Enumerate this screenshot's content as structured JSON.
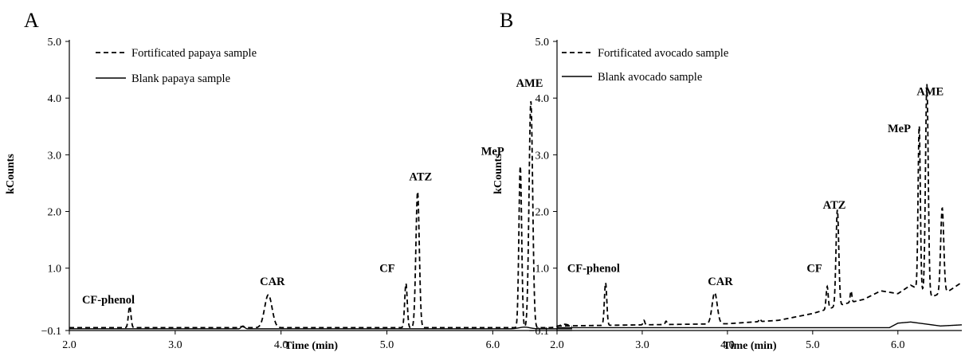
{
  "chart_data": [
    {
      "type": "line",
      "panel_label": "A",
      "xlabel": "Time (min)",
      "ylabel": "kCounts",
      "xlim": [
        2.0,
        6.75
      ],
      "ylim": [
        -0.1,
        5.0
      ],
      "x_ticks": [
        "2.0",
        "3.0",
        "4.0",
        "5.0",
        "6.0"
      ],
      "y_ticks": [
        "5.0",
        "4.0",
        "3.0",
        "2.0",
        "1.0",
        "−0.1"
      ],
      "legend_position": "top-left",
      "series": [
        {
          "name": "Fortificated papaya sample",
          "style": "dashed",
          "baseline": -0.05,
          "peaks": [
            {
              "t": 2.57,
              "h": 0.38,
              "w": 0.012
            },
            {
              "t": 3.63,
              "h": 0.02,
              "w": 0.02
            },
            {
              "t": 3.88,
              "h": 0.58,
              "w": 0.035
            },
            {
              "t": 5.18,
              "h": 0.78,
              "w": 0.012
            },
            {
              "t": 5.29,
              "h": 2.4,
              "w": 0.016
            },
            {
              "t": 6.26,
              "h": 2.85,
              "w": 0.013
            },
            {
              "t": 6.36,
              "h": 4.0,
              "w": 0.017
            },
            {
              "t": 6.68,
              "h": 0.06,
              "w": 0.05
            }
          ]
        },
        {
          "name": "Blank papaya sample",
          "style": "solid",
          "baseline": -0.07,
          "peaks": [
            {
              "t": 3.64,
              "h": 0.05,
              "w": 0.015
            },
            {
              "t": 6.3,
              "h": 0.03,
              "w": 0.05
            }
          ]
        }
      ],
      "annotations": [
        {
          "text": "CF-phenol",
          "x": 2.12,
          "y": 0.38
        },
        {
          "text": "CAR",
          "x": 3.8,
          "y": 0.7
        },
        {
          "text": "CF",
          "x": 4.93,
          "y": 0.93
        },
        {
          "text": "ATZ",
          "x": 5.21,
          "y": 2.55
        },
        {
          "text": "MeP",
          "x": 5.89,
          "y": 3.0
        },
        {
          "text": "AME",
          "x": 6.22,
          "y": 4.2
        }
      ]
    },
    {
      "type": "line",
      "panel_label": "B",
      "xlabel": "Time (min)",
      "ylabel": "kCounts",
      "xlim": [
        2.0,
        6.75
      ],
      "ylim": [
        -0.1,
        5.0
      ],
      "x_ticks": [
        "2.0",
        "3.0",
        "4.0",
        "5.0",
        "6.0"
      ],
      "y_ticks": [
        "5.0",
        "4.0",
        "3.0",
        "2.0",
        "1.0",
        "−0.1"
      ],
      "legend_position": "top-left",
      "series": [
        {
          "name": "Fortificated avocado sample",
          "style": "dashed",
          "baseline": -0.02,
          "hump": [
            [
              2.0,
              -0.02
            ],
            [
              3.0,
              0.0
            ],
            [
              4.0,
              0.02
            ],
            [
              4.6,
              0.08
            ],
            [
              5.0,
              0.2
            ],
            [
              5.4,
              0.38
            ],
            [
              5.6,
              0.45
            ],
            [
              5.8,
              0.6
            ],
            [
              6.0,
              0.55
            ],
            [
              6.15,
              0.7
            ],
            [
              6.4,
              0.5
            ],
            [
              6.6,
              0.6
            ],
            [
              6.75,
              0.75
            ]
          ],
          "peaks": [
            {
              "t": 2.57,
              "h": 0.75,
              "w": 0.014
            },
            {
              "t": 3.02,
              "h": 0.08,
              "w": 0.01
            },
            {
              "t": 3.28,
              "h": 0.06,
              "w": 0.01
            },
            {
              "t": 3.85,
              "h": 0.55,
              "w": 0.03
            },
            {
              "t": 4.38,
              "h": 0.05,
              "w": 0.01
            },
            {
              "t": 5.17,
              "h": 0.4,
              "w": 0.012
            },
            {
              "t": 5.29,
              "h": 1.7,
              "w": 0.016
            },
            {
              "t": 5.45,
              "h": 0.2,
              "w": 0.01
            },
            {
              "t": 6.25,
              "h": 2.9,
              "w": 0.013
            },
            {
              "t": 6.34,
              "h": 3.7,
              "w": 0.016
            },
            {
              "t": 6.52,
              "h": 1.5,
              "w": 0.018
            }
          ]
        },
        {
          "name": "Blank avocado sample",
          "style": "solid",
          "baseline": -0.05,
          "hump": [
            [
              2.0,
              -0.05
            ],
            [
              5.9,
              -0.05
            ],
            [
              6.0,
              0.03
            ],
            [
              6.15,
              0.05
            ],
            [
              6.3,
              0.02
            ],
            [
              6.5,
              -0.02
            ],
            [
              6.75,
              0.0
            ]
          ],
          "peaks": []
        }
      ],
      "annotations": [
        {
          "text": "CF-phenol",
          "x": 2.12,
          "y": 0.93
        },
        {
          "text": "CAR",
          "x": 3.77,
          "y": 0.7
        },
        {
          "text": "CF",
          "x": 4.93,
          "y": 0.93
        },
        {
          "text": "ATZ",
          "x": 5.12,
          "y": 2.05
        },
        {
          "text": "MeP",
          "x": 5.88,
          "y": 3.4
        },
        {
          "text": "AME",
          "x": 6.22,
          "y": 4.05
        }
      ]
    }
  ]
}
